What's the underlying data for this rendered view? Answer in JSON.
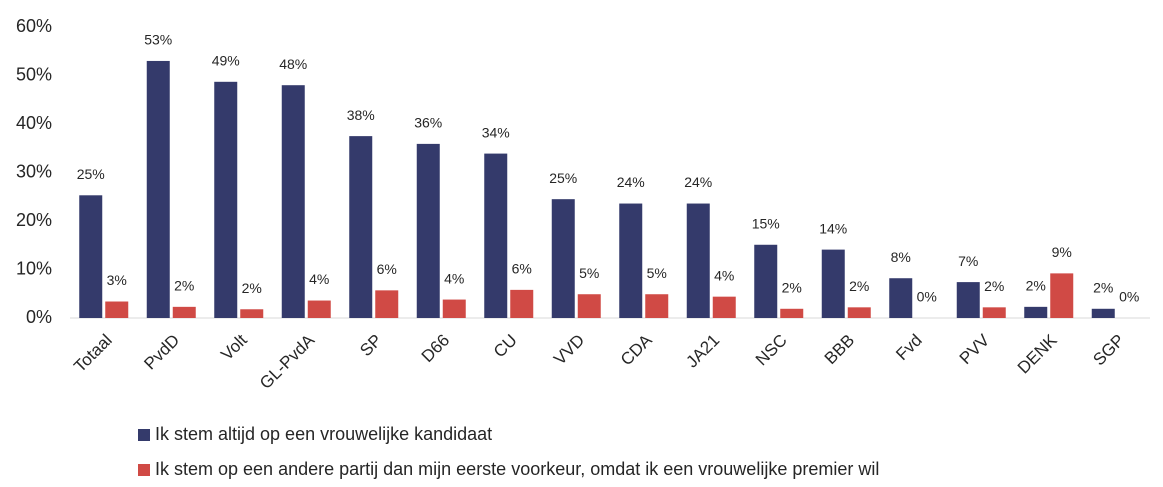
{
  "chart_data": {
    "type": "bar",
    "categories": [
      "Totaal",
      "PvdD",
      "Volt",
      "GL-PvdA",
      "SP",
      "D66",
      "CU",
      "VVD",
      "CDA",
      "JA21",
      "NSC",
      "BBB",
      "Fvd",
      "PVV",
      "DENK",
      "SGP"
    ],
    "series": [
      {
        "name": "Ik stem altijd op een vrouwelijke kandidaat",
        "color": "#343a6b",
        "values": [
          25.3,
          53,
          48.7,
          48,
          37.5,
          35.9,
          33.9,
          24.5,
          23.6,
          23.6,
          15.1,
          14.1,
          8.2,
          7.4,
          2.3,
          1.9
        ],
        "value_labels": [
          "25%",
          "53%",
          "49%",
          "48%",
          "38%",
          "36%",
          "34%",
          "25%",
          "24%",
          "24%",
          "15%",
          "14%",
          "8%",
          "7%",
          "2%",
          "2%"
        ]
      },
      {
        "name": "Ik stem op een andere partij dan mijn eerste voorkeur, omdat ik een vrouwelijke premier wil",
        "color": "#d04a45",
        "values": [
          3.4,
          2.3,
          1.8,
          3.6,
          5.7,
          3.8,
          5.8,
          4.9,
          4.9,
          4.4,
          1.9,
          2.2,
          0,
          2.2,
          9.2,
          0
        ],
        "value_labels": [
          "3%",
          "2%",
          "2%",
          "4%",
          "6%",
          "4%",
          "6%",
          "5%",
          "5%",
          "4%",
          "2%",
          "2%",
          "0%",
          "2%",
          "9%",
          "0%"
        ]
      }
    ],
    "ylim": [
      0,
      60
    ],
    "yticks": [
      {
        "value": 0,
        "label": "0%"
      },
      {
        "value": 10,
        "label": "10%"
      },
      {
        "value": 20,
        "label": "20%"
      },
      {
        "value": 30,
        "label": "30%"
      },
      {
        "value": 40,
        "label": "40%"
      },
      {
        "value": 50,
        "label": "50%"
      },
      {
        "value": 60,
        "label": "60%"
      }
    ],
    "legend": "bottom"
  }
}
